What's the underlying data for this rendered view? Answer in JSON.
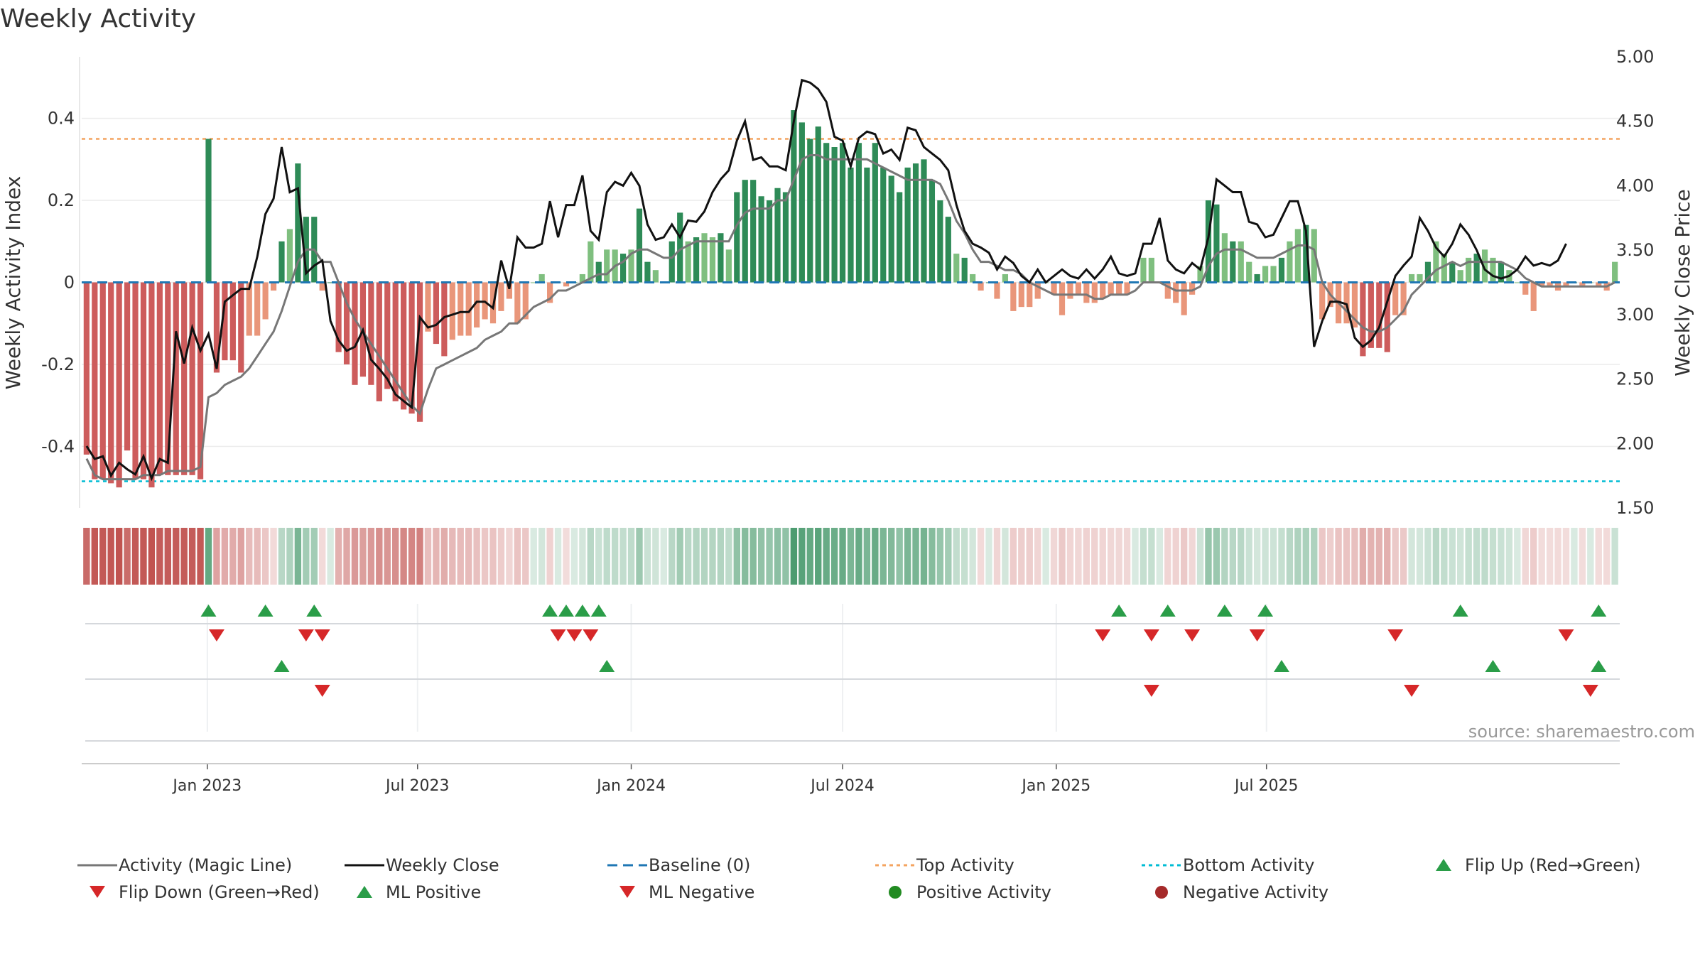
{
  "title": "Weekly Activity",
  "source": "source: sharemaestro.com",
  "colors": {
    "pos_strong": "#2e8b57",
    "pos_light": "#7fbf7f",
    "neg_strong": "#cd5c5c",
    "neg_light": "#e9967a",
    "magic_line": "#777777",
    "close_line": "#111111",
    "baseline": "#1f77b4",
    "top": "#f4a460",
    "bottom": "#00bcd4",
    "up": "#2a9d48",
    "down": "#d62728"
  },
  "chart_data": {
    "type": "bar",
    "start_week": "2022-09-19",
    "x_tick_labels": [
      "Jan 2023",
      "Jul 2023",
      "Jan 2024",
      "Jul 2024",
      "Jan 2025",
      "Jul 2025"
    ],
    "x_tick_dates": [
      "2023-01-01",
      "2023-07-01",
      "2024-01-01",
      "2024-07-01",
      "2025-01-01",
      "2025-07-01"
    ],
    "y_left": {
      "label": "Weekly Activity Index",
      "ticks": [
        -0.4,
        -0.2,
        0,
        0.2,
        0.4
      ],
      "tick_labels": [
        "-0.4",
        "-0.2",
        "0",
        "0.2",
        "0.4"
      ],
      "range": [
        -0.55,
        0.55
      ]
    },
    "y_right": {
      "label": "Weekly Close Price",
      "ticks": [
        1.5,
        2.0,
        2.5,
        3.0,
        3.5,
        4.0,
        4.5,
        5.0
      ],
      "tick_labels": [
        "1.50",
        "2.00",
        "2.50",
        "3.00",
        "3.50",
        "4.00",
        "4.50",
        "5.00"
      ],
      "range": [
        1.5,
        5.0
      ]
    },
    "top_activity": 0.35,
    "bottom_activity": -0.485,
    "activity": [
      -0.42,
      -0.48,
      -0.48,
      -0.49,
      -0.5,
      -0.41,
      -0.48,
      -0.48,
      -0.5,
      -0.47,
      -0.47,
      -0.47,
      -0.47,
      -0.47,
      -0.48,
      0.35,
      -0.22,
      -0.19,
      -0.19,
      -0.22,
      -0.13,
      -0.13,
      -0.09,
      -0.02,
      0.1,
      0.13,
      0.29,
      0.16,
      0.16,
      -0.02,
      0,
      -0.17,
      -0.2,
      -0.25,
      -0.23,
      -0.25,
      -0.29,
      -0.26,
      -0.29,
      -0.31,
      -0.32,
      -0.34,
      -0.12,
      -0.15,
      -0.18,
      -0.14,
      -0.13,
      -0.13,
      -0.11,
      -0.09,
      -0.1,
      -0.07,
      -0.04,
      -0.1,
      -0.09,
      0,
      0.02,
      -0.05,
      0,
      -0.01,
      0,
      0.02,
      0.1,
      0.05,
      0.08,
      0.08,
      0.07,
      0.08,
      0.18,
      0.05,
      0.03,
      0,
      0.1,
      0.17,
      0.1,
      0.11,
      0.12,
      0.11,
      0.12,
      0.08,
      0.22,
      0.25,
      0.25,
      0.21,
      0.2,
      0.23,
      0.22,
      0.42,
      0.39,
      0.35,
      0.38,
      0.34,
      0.33,
      0.34,
      0.28,
      0.34,
      0.28,
      0.34,
      0.28,
      0.26,
      0.22,
      0.28,
      0.29,
      0.3,
      0.25,
      0.2,
      0.16,
      0.07,
      0.06,
      0.02,
      -0.02,
      0,
      -0.04,
      0.02,
      -0.07,
      -0.06,
      -0.06,
      -0.04,
      0,
      -0.03,
      -0.08,
      -0.04,
      -0.03,
      -0.05,
      -0.05,
      -0.04,
      -0.03,
      -0.03,
      -0.03,
      0,
      0.06,
      0.06,
      0,
      -0.04,
      -0.05,
      -0.08,
      -0.03,
      0.04,
      0.2,
      0.19,
      0.12,
      0.1,
      0.1,
      0.05,
      0.02,
      0.04,
      0.04,
      0.06,
      0.1,
      0.13,
      0.14,
      0.13,
      -0.09,
      -0.06,
      -0.1,
      -0.1,
      -0.11,
      -0.18,
      -0.16,
      -0.16,
      -0.17,
      -0.08,
      -0.08,
      0.02,
      0.02,
      0.05,
      0.1,
      0.07,
      0.05,
      0.03,
      0.06,
      0.07,
      0.08,
      0.06,
      0.05,
      0.03,
      0,
      -0.03,
      -0.07,
      -0.01,
      -0.01,
      -0.02,
      -0.01,
      0,
      -0.01,
      0,
      -0.01,
      -0.02,
      0.05
    ],
    "magic_line": [
      -0.43,
      -0.47,
      -0.48,
      -0.48,
      -0.48,
      -0.48,
      -0.48,
      -0.47,
      -0.47,
      -0.47,
      -0.46,
      -0.46,
      -0.46,
      -0.46,
      -0.45,
      -0.28,
      -0.27,
      -0.25,
      -0.24,
      -0.23,
      -0.21,
      -0.18,
      -0.15,
      -0.12,
      -0.07,
      -0.01,
      0.05,
      0.08,
      0.08,
      0.05,
      0.05,
      0,
      -0.05,
      -0.09,
      -0.12,
      -0.15,
      -0.18,
      -0.21,
      -0.24,
      -0.27,
      -0.3,
      -0.32,
      -0.26,
      -0.21,
      -0.2,
      -0.19,
      -0.18,
      -0.17,
      -0.16,
      -0.14,
      -0.13,
      -0.12,
      -0.1,
      -0.1,
      -0.08,
      -0.06,
      -0.05,
      -0.04,
      -0.02,
      -0.02,
      -0.01,
      0,
      0.01,
      0.02,
      0.02,
      0.04,
      0.05,
      0.07,
      0.08,
      0.08,
      0.07,
      0.06,
      0.06,
      0.08,
      0.09,
      0.1,
      0.1,
      0.1,
      0.1,
      0.1,
      0.14,
      0.17,
      0.18,
      0.18,
      0.18,
      0.2,
      0.2,
      0.25,
      0.3,
      0.31,
      0.31,
      0.3,
      0.3,
      0.3,
      0.3,
      0.3,
      0.3,
      0.29,
      0.28,
      0.27,
      0.26,
      0.25,
      0.25,
      0.25,
      0.25,
      0.24,
      0.2,
      0.15,
      0.12,
      0.08,
      0.05,
      0.05,
      0.04,
      0.03,
      0.03,
      0.02,
      0,
      -0.01,
      -0.02,
      -0.03,
      -0.03,
      -0.03,
      -0.03,
      -0.03,
      -0.04,
      -0.04,
      -0.03,
      -0.03,
      -0.03,
      -0.02,
      0,
      0,
      0,
      -0.01,
      -0.02,
      -0.02,
      -0.02,
      -0.01,
      0.04,
      0.07,
      0.08,
      0.08,
      0.08,
      0.07,
      0.06,
      0.06,
      0.06,
      0.07,
      0.08,
      0.09,
      0.09,
      0.08,
      0,
      -0.03,
      -0.05,
      -0.07,
      -0.09,
      -0.11,
      -0.12,
      -0.12,
      -0.11,
      -0.09,
      -0.07,
      -0.03,
      -0.01,
      0.01,
      0.03,
      0.04,
      0.05,
      0.04,
      0.05,
      0.05,
      0.05,
      0.05,
      0.05,
      0.04,
      0.03,
      0.01,
      0,
      -0.01,
      -0.01,
      -0.01,
      -0.01,
      -0.01,
      -0.01,
      -0.01,
      -0.01,
      -0.01,
      0
    ],
    "weekly_close": [
      1.98,
      1.88,
      1.9,
      1.75,
      1.85,
      1.8,
      1.76,
      1.9,
      1.73,
      1.88,
      1.85,
      2.87,
      2.62,
      2.9,
      2.72,
      2.85,
      2.58,
      3.1,
      3.15,
      3.2,
      3.2,
      3.45,
      3.78,
      3.9,
      4.3,
      3.95,
      3.98,
      3.32,
      3.38,
      3.42,
      2.95,
      2.8,
      2.72,
      2.75,
      2.88,
      2.65,
      2.58,
      2.5,
      2.38,
      2.33,
      2.28,
      2.98,
      2.9,
      2.92,
      2.98,
      3.0,
      3.02,
      3.02,
      3.1,
      3.1,
      3.05,
      3.42,
      3.2,
      3.6,
      3.52,
      3.52,
      3.55,
      3.88,
      3.6,
      3.85,
      3.85,
      4.08,
      3.65,
      3.58,
      3.95,
      4.03,
      4.0,
      4.1,
      4.0,
      3.7,
      3.58,
      3.6,
      3.7,
      3.6,
      3.73,
      3.72,
      3.8,
      3.95,
      4.05,
      4.12,
      4.35,
      4.5,
      4.2,
      4.22,
      4.15,
      4.15,
      4.12,
      4.5,
      4.82,
      4.8,
      4.75,
      4.65,
      4.38,
      4.35,
      4.15,
      4.37,
      4.42,
      4.4,
      4.25,
      4.28,
      4.2,
      4.45,
      4.43,
      4.3,
      4.25,
      4.2,
      4.12,
      3.85,
      3.65,
      3.55,
      3.52,
      3.48,
      3.35,
      3.45,
      3.4,
      3.3,
      3.25,
      3.35,
      3.25,
      3.3,
      3.35,
      3.3,
      3.28,
      3.35,
      3.28,
      3.35,
      3.45,
      3.32,
      3.3,
      3.32,
      3.55,
      3.55,
      3.75,
      3.42,
      3.35,
      3.32,
      3.4,
      3.35,
      3.6,
      4.05,
      4.0,
      3.95,
      3.95,
      3.72,
      3.7,
      3.6,
      3.62,
      3.75,
      3.88,
      3.88,
      3.65,
      2.75,
      2.95,
      3.1,
      3.1,
      3.08,
      2.82,
      2.75,
      2.8,
      2.9,
      3.1,
      3.3,
      3.38,
      3.45,
      3.75,
      3.65,
      3.52,
      3.45,
      3.55,
      3.7,
      3.62,
      3.5,
      3.35,
      3.3,
      3.28,
      3.3,
      3.35,
      3.45,
      3.38,
      3.4,
      3.38,
      3.42,
      3.55
    ],
    "heat_strip": {
      "description": "weekly activity heat strip, same values as activity",
      "palette_pos": "#2e8b57",
      "palette_neg": "#c0504d"
    },
    "signal_rows": [
      {
        "up": [
          15,
          22,
          28,
          57,
          59,
          61,
          63,
          127,
          133,
          140,
          145,
          169,
          186
        ],
        "down": [
          16,
          27,
          29,
          58,
          60,
          62,
          125,
          131,
          136,
          144,
          161,
          182
        ]
      },
      {
        "up": [
          24,
          64,
          147,
          173,
          186
        ],
        "down": [
          29,
          131,
          163,
          185
        ]
      },
      {
        "up": [],
        "down": []
      }
    ],
    "legend": [
      {
        "label": "Activity (Magic Line)",
        "kind": "line-gray"
      },
      {
        "label": "Weekly Close",
        "kind": "line-black"
      },
      {
        "label": "Baseline (0)",
        "kind": "dash-blue"
      },
      {
        "label": "Top Activity",
        "kind": "dot-orange"
      },
      {
        "label": "Bottom Activity",
        "kind": "dot-cyan"
      },
      {
        "label": "Flip Up (Red→Green)",
        "kind": "tri-up"
      },
      {
        "label": "Flip Down (Green→Red)",
        "kind": "tri-down"
      },
      {
        "label": "ML Positive",
        "kind": "tri-up"
      },
      {
        "label": "ML Negative",
        "kind": "tri-down"
      },
      {
        "label": "Positive Activity",
        "kind": "dot-green"
      },
      {
        "label": "Negative Activity",
        "kind": "dot-red"
      }
    ]
  }
}
